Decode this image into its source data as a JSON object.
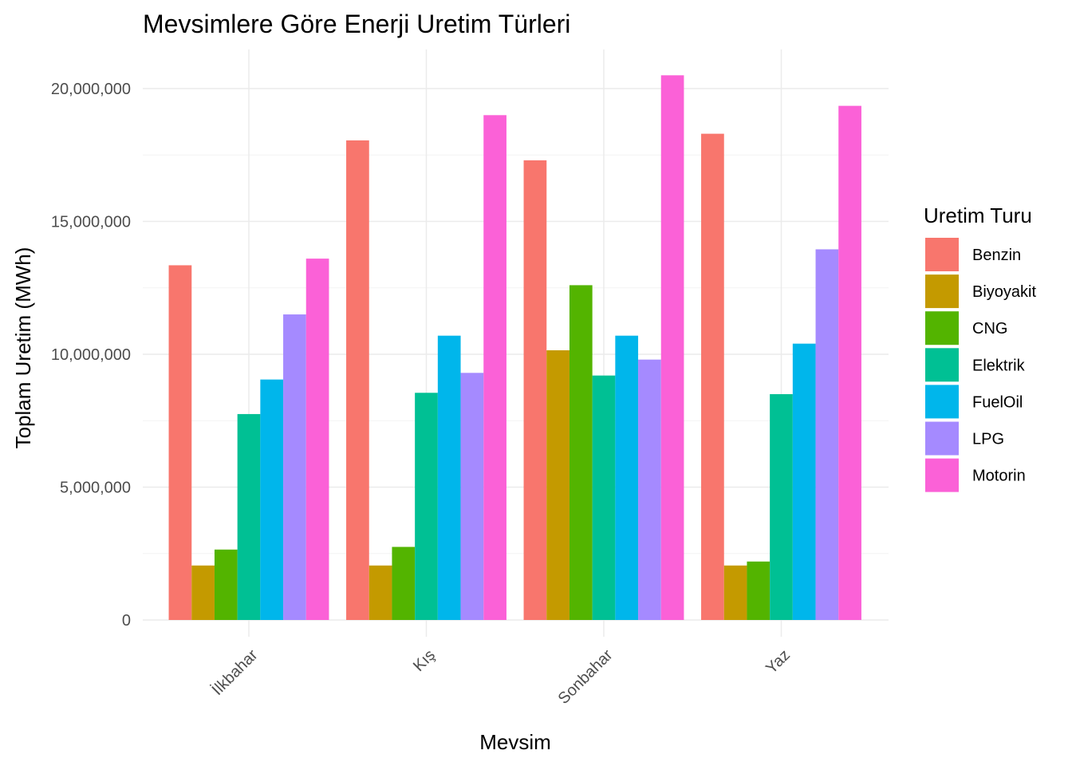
{
  "chart_data": {
    "type": "bar",
    "title": "Mevsimlere Göre Enerji Uretim Türleri",
    "xlabel": "Mevsim",
    "ylabel": "Toplam Uretim (MWh)",
    "categories": [
      "İlkbahar",
      "Kış",
      "Sonbahar",
      "Yaz"
    ],
    "ylim": [
      0,
      22000000
    ],
    "yticks": [
      0,
      5000000,
      10000000,
      15000000,
      20000000
    ],
    "ytick_labels": [
      "0",
      "5,000,000",
      "10,000,000",
      "15,000,000",
      "20,000,000"
    ],
    "grid": true,
    "legend": {
      "title": "Uretim Turu",
      "position": "right"
    },
    "series": [
      {
        "name": "Benzin",
        "color": "#F8766D",
        "values": [
          13350000,
          18050000,
          17300000,
          18300000
        ]
      },
      {
        "name": "Biyoyakit",
        "color": "#C49A00",
        "values": [
          2050000,
          2050000,
          10150000,
          2050000
        ]
      },
      {
        "name": "CNG",
        "color": "#53B400",
        "values": [
          2650000,
          2750000,
          12600000,
          2200000
        ]
      },
      {
        "name": "Elektrik",
        "color": "#00C094",
        "values": [
          7750000,
          8550000,
          9200000,
          8500000
        ]
      },
      {
        "name": "FuelOil",
        "color": "#00B6EB",
        "values": [
          9050000,
          10700000,
          10700000,
          10400000
        ]
      },
      {
        "name": "LPG",
        "color": "#A58AFF",
        "values": [
          11500000,
          9300000,
          9800000,
          13950000
        ]
      },
      {
        "name": "Motorin",
        "color": "#FB61D7",
        "values": [
          13600000,
          19000000,
          20500000,
          19350000
        ]
      }
    ]
  }
}
